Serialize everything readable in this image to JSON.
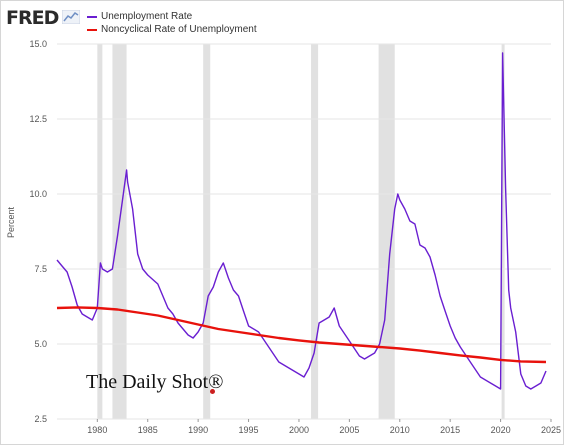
{
  "brand": {
    "logo": "FRED",
    "logo_icon": "fred-line-chart-icon"
  },
  "colors": {
    "unemployment": "#6a1fd1",
    "noncyclical": "#e8120c",
    "recession": "#e1e1e1",
    "grid": "#e6e6e6",
    "watermark_dot": "#cc1f1f"
  },
  "watermark": "The Daily Shot®",
  "chart_data": {
    "type": "line",
    "title": "",
    "xlabel": "",
    "ylabel": "Percent",
    "xlim": [
      1976.0,
      2025.0
    ],
    "ylim": [
      2.5,
      15.0
    ],
    "x_ticks": [
      "1980",
      "1985",
      "1990",
      "1995",
      "2000",
      "2005",
      "2010",
      "2015",
      "2020",
      "2025"
    ],
    "y_ticks": [
      "2.5",
      "5.0",
      "7.5",
      "10.0",
      "12.5",
      "15.0"
    ],
    "grid": "horizontal",
    "legend_position": "top-left",
    "recessions": [
      [
        1980.0,
        1980.5
      ],
      [
        1981.5,
        1982.9
      ],
      [
        1990.5,
        1991.2
      ],
      [
        2001.2,
        2001.9
      ],
      [
        2007.9,
        2009.5
      ],
      [
        2020.1,
        2020.3
      ]
    ],
    "series": [
      {
        "name": "Unemployment Rate",
        "x": [
          1976.0,
          1976.5,
          1977.0,
          1977.5,
          1978.0,
          1978.5,
          1979.0,
          1979.5,
          1980.0,
          1980.3,
          1980.5,
          1981.0,
          1981.5,
          1982.0,
          1982.5,
          1982.9,
          1983.0,
          1983.5,
          1984.0,
          1984.5,
          1985.0,
          1986.0,
          1987.0,
          1987.5,
          1988.0,
          1989.0,
          1989.5,
          1990.0,
          1990.5,
          1991.0,
          1991.5,
          1992.0,
          1992.5,
          1993.0,
          1993.5,
          1994.0,
          1994.5,
          1995.0,
          1996.0,
          1997.0,
          1998.0,
          1999.0,
          2000.0,
          2000.5,
          2001.0,
          2001.5,
          2002.0,
          2002.5,
          2003.0,
          2003.5,
          2004.0,
          2005.0,
          2006.0,
          2006.5,
          2007.0,
          2007.5,
          2008.0,
          2008.5,
          2009.0,
          2009.5,
          2009.8,
          2010.0,
          2010.5,
          2011.0,
          2011.5,
          2012.0,
          2012.5,
          2013.0,
          2013.5,
          2014.0,
          2014.5,
          2015.0,
          2015.5,
          2016.0,
          2017.0,
          2018.0,
          2019.0,
          2019.5,
          2020.0,
          2020.2,
          2020.3,
          2020.5,
          2020.8,
          2021.0,
          2021.5,
          2022.0,
          2022.5,
          2023.0,
          2023.5,
          2024.0,
          2024.5
        ],
        "y": [
          7.8,
          7.6,
          7.4,
          6.9,
          6.3,
          6.0,
          5.9,
          5.8,
          6.2,
          7.7,
          7.5,
          7.4,
          7.5,
          8.6,
          9.8,
          10.8,
          10.4,
          9.5,
          8.0,
          7.5,
          7.3,
          7.0,
          6.2,
          6.0,
          5.7,
          5.3,
          5.2,
          5.4,
          5.7,
          6.6,
          6.9,
          7.4,
          7.7,
          7.2,
          6.8,
          6.6,
          6.1,
          5.6,
          5.4,
          4.9,
          4.4,
          4.2,
          4.0,
          3.9,
          4.2,
          4.7,
          5.7,
          5.8,
          5.9,
          6.2,
          5.6,
          5.1,
          4.6,
          4.5,
          4.6,
          4.7,
          5.0,
          5.8,
          8.0,
          9.5,
          10.0,
          9.8,
          9.5,
          9.1,
          9.0,
          8.3,
          8.2,
          7.9,
          7.3,
          6.6,
          6.1,
          5.6,
          5.2,
          4.9,
          4.4,
          3.9,
          3.7,
          3.6,
          3.5,
          14.7,
          13.2,
          10.2,
          6.8,
          6.2,
          5.4,
          4.0,
          3.6,
          3.5,
          3.6,
          3.7,
          4.1
        ]
      },
      {
        "name": "Noncyclical Rate of Unemployment",
        "x": [
          1976.0,
          1978.0,
          1980.0,
          1982.0,
          1984.0,
          1986.0,
          1988.0,
          1990.0,
          1992.0,
          1994.0,
          1996.0,
          1998.0,
          2000.0,
          2002.0,
          2004.0,
          2006.0,
          2008.0,
          2010.0,
          2012.0,
          2014.0,
          2016.0,
          2018.0,
          2020.0,
          2022.0,
          2024.5
        ],
        "y": [
          6.2,
          6.22,
          6.2,
          6.15,
          6.05,
          5.95,
          5.8,
          5.65,
          5.5,
          5.4,
          5.3,
          5.2,
          5.12,
          5.05,
          5.0,
          4.95,
          4.9,
          4.85,
          4.78,
          4.7,
          4.62,
          4.55,
          4.47,
          4.42,
          4.4
        ]
      }
    ]
  }
}
